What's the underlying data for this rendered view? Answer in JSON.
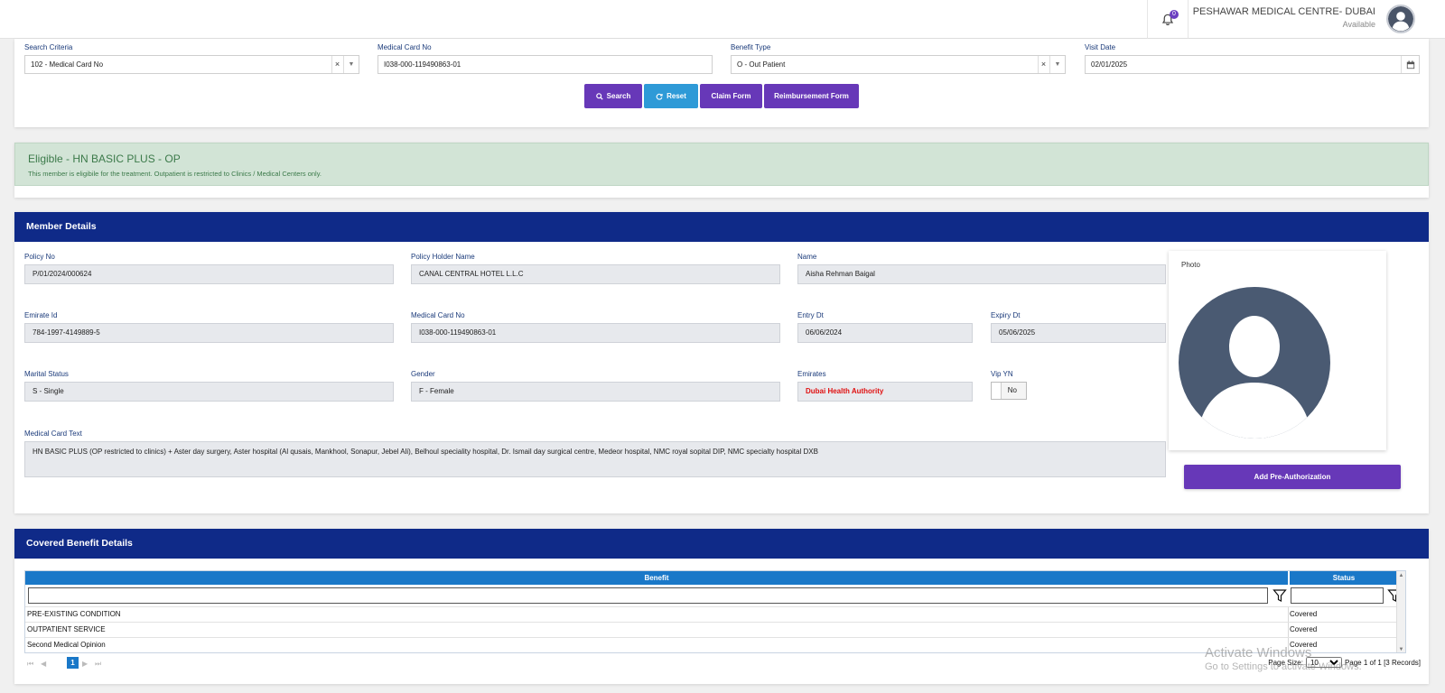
{
  "header": {
    "notification_count": "0",
    "centre_name": "PESHAWAR MEDICAL CENTRE- DUBAI",
    "centre_status": "Available"
  },
  "search": {
    "criteria_label": "Search Criteria",
    "criteria_value": "102 - Medical Card No",
    "card_label": "Medical Card No",
    "card_value": "I038-000-119490863-01",
    "benefit_label": "Benefit Type",
    "benefit_value": "O - Out Patient",
    "date_label": "Visit Date",
    "date_value": "02/01/2025",
    "clear_glyph": "×",
    "buttons": {
      "search": "Search",
      "reset": "Reset",
      "claim": "Claim Form",
      "reimbursement": "Reimbursement Form"
    }
  },
  "eligibility": {
    "title": "Eligible - HN BASIC PLUS - OP",
    "message": "This member is eligibile for the treatment. Outpatient is restricted to Clinics / Medical Centers only.",
    "color": "#d2e4d6"
  },
  "member": {
    "heading": "Member Details",
    "fields": {
      "policy_no": {
        "label": "Policy No",
        "value": "P/01/2024/000624"
      },
      "policy_holder": {
        "label": "Policy Holder Name",
        "value": "CANAL CENTRAL HOTEL L.L.C"
      },
      "name": {
        "label": "Name",
        "value": "Aisha Rehman  Baigal"
      },
      "emirate_id": {
        "label": "Emirate Id",
        "value": "784-1997-4149889-5"
      },
      "card_no": {
        "label": "Medical Card No",
        "value": "I038-000-119490863-01"
      },
      "entry_dt": {
        "label": "Entry Dt",
        "value": "06/06/2024"
      },
      "expiry_dt": {
        "label": "Expiry Dt",
        "value": "05/06/2025"
      },
      "marital": {
        "label": "Marital Status",
        "value": "S - Single"
      },
      "gender": {
        "label": "Gender",
        "value": "F - Female"
      },
      "emirates": {
        "label": "Emirates",
        "value": "Dubai Health Authority"
      },
      "vip": {
        "label": "Vip YN",
        "value": "No"
      },
      "card_text": {
        "label": "Medical Card Text",
        "value": "HN BASIC PLUS (OP restricted to clinics) + Aster day surgery, Aster hospital (Al qusais, Mankhool, Sonapur, Jebel Ali), Belhoul speciality hospital, Dr. Ismail day surgical centre, Medeor hospital, NMC royal sopital DIP,  NMC specialty hospital DXB"
      }
    },
    "photo_label": "Photo",
    "preauth_button": "Add Pre-Authorization",
    "header_color": "#0f2a88",
    "emirates_color": "#e01010"
  },
  "benefits": {
    "heading": "Covered Benefit Details",
    "columns": [
      "Benefit",
      "Status"
    ],
    "rows": [
      {
        "benefit": "PRE-EXISTING CONDITION",
        "status": "Covered"
      },
      {
        "benefit": "OUTPATIENT SERVICE",
        "status": "Covered"
      },
      {
        "benefit": "Second Medical Opinion",
        "status": "Covered"
      }
    ],
    "pager": {
      "first": "⏮",
      "prev": "◀",
      "next": "▶",
      "last": "⏭",
      "current_page": "1",
      "page_size_label": "Page Size:",
      "page_size": "10",
      "summary": "Page 1 of 1 [3 Records]"
    }
  },
  "watermark": {
    "line1": "Activate Windows",
    "line2": "Go to Settings to activate Windows."
  }
}
